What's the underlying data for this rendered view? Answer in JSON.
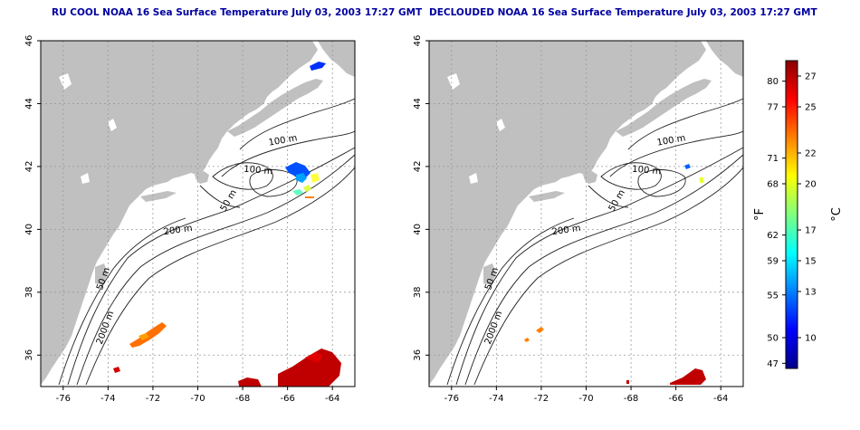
{
  "panels": [
    {
      "id": "left",
      "title": "RU COOL NOAA 16 Sea Surface Temperature July 03, 2003 17:27 GMT"
    },
    {
      "id": "right",
      "title": "DECLOUDED NOAA 16 Sea Surface Temperature July 03, 2003 17:27 GMT"
    }
  ],
  "map": {
    "lon_range": [
      -77,
      -63
    ],
    "lat_range": [
      35,
      46
    ],
    "lon_ticks": [
      "-76",
      "-74",
      "-72",
      "-70",
      "-68",
      "-66",
      "-64"
    ],
    "lat_ticks": [
      "36",
      "38",
      "40",
      "42",
      "44",
      "46"
    ],
    "grid": true,
    "land_color": "#c0c0c0",
    "ocean_color": "#ffffff",
    "contours": [
      "50 m",
      "100 m",
      "200 m",
      "2000 m"
    ],
    "contour_labels": {
      "left": [
        "100 m",
        "100 m",
        "50 m",
        "200 m",
        "50 m",
        "2000 m"
      ],
      "right": [
        "100 m",
        "100 m",
        "50 m",
        "200 m",
        "50 m",
        "2000 m"
      ]
    }
  },
  "colorbar": {
    "fahrenheit_ticks": [
      "80",
      "77",
      "71",
      "68",
      "62",
      "59",
      "55",
      "50",
      "47"
    ],
    "celsius_ticks": [
      "27",
      "25",
      "22",
      "20",
      "17",
      "15",
      "13",
      "10"
    ],
    "fahrenheit_unit": "°F",
    "celsius_unit": "°C",
    "range_celsius": [
      8,
      28
    ],
    "colors": [
      "#00008b",
      "#0000ff",
      "#0080ff",
      "#00ffff",
      "#80ff80",
      "#ffff00",
      "#ff8000",
      "#ff0000",
      "#8b0000"
    ]
  }
}
